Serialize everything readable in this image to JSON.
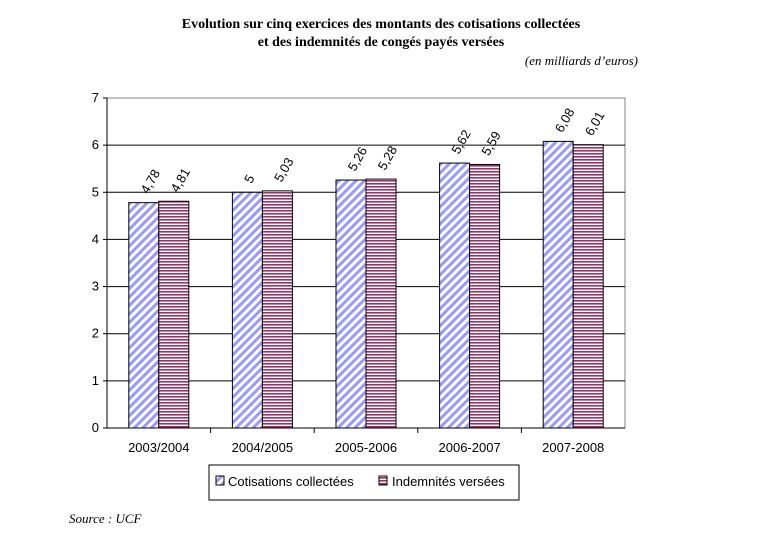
{
  "header": {
    "title_line1": "Evolution sur cinq exercices des montants des cotisations collectées",
    "title_line2": "et des indemnités de congés payés versées",
    "subtitle": "(en milliards d’euros)"
  },
  "footer": {
    "source": "Source : UCF"
  },
  "chart_data": {
    "type": "bar",
    "categories": [
      "2003/2004",
      "2004/2005",
      "2005-2006",
      "2006-2007",
      "2007-2008"
    ],
    "series": [
      {
        "name": "Cotisations collectées",
        "values": [
          4.78,
          5,
          5.26,
          5.62,
          6.08
        ],
        "labels": [
          "4,78",
          "5",
          "5,26",
          "5,62",
          "6,08"
        ],
        "color": "#9999ff",
        "pattern": "diagonal"
      },
      {
        "name": "Indemnités versées",
        "values": [
          4.81,
          5.03,
          5.28,
          5.59,
          6.01
        ],
        "labels": [
          "4,81",
          "5,03",
          "5,28",
          "5,59",
          "6,01"
        ],
        "color": "#993366",
        "pattern": "horizontal"
      }
    ],
    "ylim": [
      0,
      7
    ],
    "yticks": [
      "0",
      "1",
      "2",
      "3",
      "4",
      "5",
      "6",
      "7"
    ],
    "grid": true,
    "legend": "bottom"
  }
}
